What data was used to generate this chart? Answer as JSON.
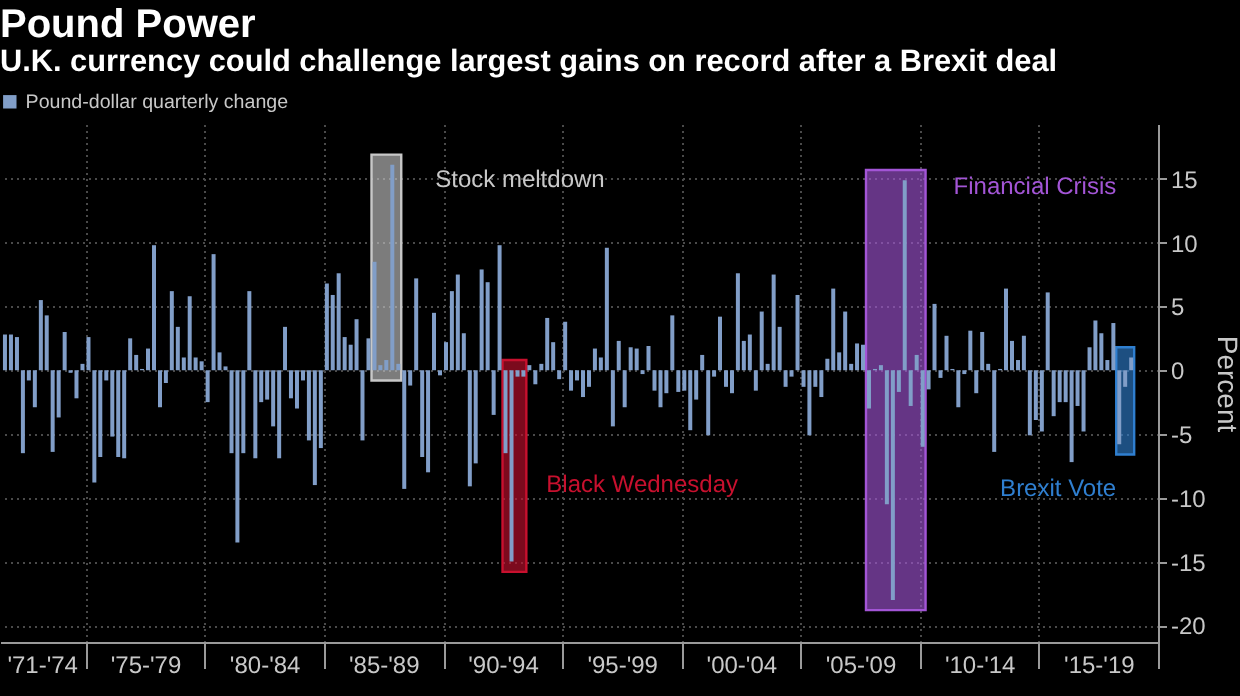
{
  "chart_data": {
    "type": "bar",
    "title": "Pound Power",
    "subtitle": "U.K. currency could challenge largest gains on record after a Brexit deal",
    "ylabel": "Percent",
    "x": [
      "1971-07",
      "1971-10",
      "1972-01",
      "1972-04",
      "1972-07",
      "1972-10",
      "1973-01",
      "1973-04",
      "1973-07",
      "1973-10",
      "1974-01",
      "1974-04",
      "1974-07",
      "1974-10",
      "1975-01",
      "1975-04",
      "1975-07",
      "1975-10",
      "1976-01",
      "1976-04",
      "1976-07",
      "1976-10",
      "1977-01",
      "1977-04",
      "1977-07",
      "1977-10",
      "1978-01",
      "1978-04",
      "1978-07",
      "1978-10",
      "1979-01",
      "1979-04",
      "1979-07",
      "1979-10",
      "1980-01",
      "1980-04",
      "1980-07",
      "1980-10",
      "1981-01",
      "1981-04",
      "1981-07",
      "1981-10",
      "1982-01",
      "1982-04",
      "1982-07",
      "1982-10",
      "1983-01",
      "1983-04",
      "1983-07",
      "1983-10",
      "1984-01",
      "1984-04",
      "1984-07",
      "1984-10",
      "1985-01",
      "1985-04",
      "1985-07",
      "1985-10",
      "1986-01",
      "1986-04",
      "1986-07",
      "1986-10",
      "1987-01",
      "1987-04",
      "1987-07",
      "1987-10",
      "1988-01",
      "1988-04",
      "1988-07",
      "1988-10",
      "1989-01",
      "1989-04",
      "1989-07",
      "1989-10",
      "1990-01",
      "1990-04",
      "1990-07",
      "1990-10",
      "1991-01",
      "1991-04",
      "1991-07",
      "1991-10",
      "1992-01",
      "1992-04",
      "1992-07",
      "1992-10",
      "1993-01",
      "1993-04",
      "1993-07",
      "1993-10",
      "1994-01",
      "1994-04",
      "1994-07",
      "1994-10",
      "1995-01",
      "1995-04",
      "1995-07",
      "1995-10",
      "1996-01",
      "1996-04",
      "1996-07",
      "1996-10",
      "1997-01",
      "1997-04",
      "1997-07",
      "1997-10",
      "1998-01",
      "1998-04",
      "1998-07",
      "1998-10",
      "1999-01",
      "1999-04",
      "1999-07",
      "1999-10",
      "2000-01",
      "2000-04",
      "2000-07",
      "2000-10",
      "2001-01",
      "2001-04",
      "2001-07",
      "2001-10",
      "2002-01",
      "2002-04",
      "2002-07",
      "2002-10",
      "2003-01",
      "2003-04",
      "2003-07",
      "2003-10",
      "2004-01",
      "2004-04",
      "2004-07",
      "2004-10",
      "2005-01",
      "2005-04",
      "2005-07",
      "2005-10",
      "2006-01",
      "2006-04",
      "2006-07",
      "2006-10",
      "2007-01",
      "2007-04",
      "2007-07",
      "2007-10",
      "2008-01",
      "2008-04",
      "2008-07",
      "2008-10",
      "2009-01",
      "2009-04",
      "2009-07",
      "2009-10",
      "2010-01",
      "2010-04",
      "2010-07",
      "2010-10",
      "2011-01",
      "2011-04",
      "2011-07",
      "2011-10",
      "2012-01",
      "2012-04",
      "2012-07",
      "2012-10",
      "2013-01",
      "2013-04",
      "2013-07",
      "2013-10",
      "2014-01",
      "2014-04",
      "2014-07",
      "2014-10",
      "2015-01",
      "2015-04",
      "2015-07",
      "2015-10",
      "2016-01",
      "2016-04",
      "2016-07",
      "2016-10",
      "2017-01",
      "2017-04",
      "2017-07",
      "2017-10",
      "2018-01",
      "2018-04",
      "2018-07",
      "2018-10"
    ],
    "series": [
      {
        "name": "Pound-dollar quarterly change",
        "color": "#819ec8",
        "values": [
          2.8,
          2.8,
          2.6,
          -6.5,
          -0.8,
          -2.9,
          5.5,
          4.3,
          -6.4,
          -3.7,
          3.0,
          -0.2,
          -2.2,
          0.5,
          2.6,
          -8.8,
          -6.8,
          -0.8,
          -5.2,
          -6.8,
          -6.9,
          2.5,
          1.2,
          0.1,
          1.7,
          9.8,
          -2.9,
          -1.0,
          6.2,
          3.4,
          1.0,
          5.8,
          1.0,
          0.7,
          -2.5,
          9.1,
          1.4,
          0.3,
          -6.5,
          -13.5,
          -6.5,
          6.2,
          -6.9,
          -2.5,
          -2.3,
          -4.4,
          -6.9,
          3.4,
          -2.2,
          -3.0,
          -0.8,
          -5.5,
          -9.0,
          -6.1,
          6.8,
          5.9,
          7.6,
          2.6,
          2.0,
          4.0,
          -5.5,
          2.5,
          8.5,
          0.4,
          0.8,
          16.1,
          0.5,
          -9.3,
          -1.2,
          7.2,
          -6.8,
          -8.0,
          4.5,
          -0.4,
          2.2,
          6.2,
          7.5,
          2.9,
          -9.1,
          -7.3,
          7.9,
          6.9,
          -3.5,
          9.8,
          -6.5,
          -15.0,
          -0.5,
          -0.5,
          0.4,
          -1.1,
          0.5,
          4.1,
          2.2,
          -0.7,
          3.8,
          -1.6,
          -0.8,
          -2.1,
          -1.3,
          1.7,
          1.0,
          9.6,
          -4.4,
          2.3,
          -2.9,
          1.8,
          1.7,
          -0.3,
          1.9,
          -1.6,
          -2.9,
          -1.8,
          4.3,
          -1.7,
          -1.6,
          -4.7,
          -2.3,
          1.2,
          -5.1,
          -0.5,
          4.2,
          -1.3,
          -1.8,
          7.6,
          2.3,
          2.8,
          -1.6,
          4.6,
          0.5,
          7.5,
          3.4,
          -1.3,
          -0.5,
          5.9,
          -1.3,
          -5.1,
          -1.3,
          -2.1,
          0.9,
          6.4,
          1.4,
          4.6,
          0.5,
          2.1,
          2.0,
          -3.0,
          0.1,
          0.4,
          -10.5,
          -18.0,
          -1.7,
          14.9,
          -2.8,
          1.2,
          -6.0,
          -1.5,
          5.2,
          -0.6,
          2.7,
          0.1,
          -2.9,
          -0.3,
          3.1,
          -1.8,
          3.0,
          0.5,
          -6.4,
          0.1,
          6.4,
          2.3,
          0.8,
          2.7,
          -5.1,
          -3.9,
          -4.8,
          6.1,
          -3.6,
          -2.5,
          -2.5,
          -7.2,
          -2.8,
          -4.8,
          1.8,
          3.9,
          2.9,
          0.8,
          3.7,
          -5.8,
          -1.3,
          1.0
        ]
      }
    ],
    "xlim": [
      "1971-06",
      "2020-01"
    ],
    "xticks": [
      {
        "value": "1973-03",
        "label": "'71-'74"
      },
      {
        "value": "1975-01",
        "label": null
      },
      {
        "value": "1977-07",
        "label": "'75-'79"
      },
      {
        "value": "1980-01",
        "label": null
      },
      {
        "value": "1982-07",
        "label": "'80-'84"
      },
      {
        "value": "1985-01",
        "label": null
      },
      {
        "value": "1987-07",
        "label": "'85-'89"
      },
      {
        "value": "1990-01",
        "label": null
      },
      {
        "value": "1992-07",
        "label": "'90-'94"
      },
      {
        "value": "1995-01",
        "label": null
      },
      {
        "value": "1997-07",
        "label": "'95-'99"
      },
      {
        "value": "2000-01",
        "label": null
      },
      {
        "value": "2002-07",
        "label": "'00-'04"
      },
      {
        "value": "2005-01",
        "label": null
      },
      {
        "value": "2007-07",
        "label": "'05-'09"
      },
      {
        "value": "2010-01",
        "label": null
      },
      {
        "value": "2012-07",
        "label": "'10-'14"
      },
      {
        "value": "2015-01",
        "label": null
      },
      {
        "value": "2017-07",
        "label": "'15-'19"
      },
      {
        "value": "2020-01",
        "label": null
      }
    ],
    "ylim": [
      -21.3,
      19.3
    ],
    "yticks": [
      -20,
      -15,
      -10,
      -5,
      0,
      5,
      10,
      15
    ],
    "bands": [
      {
        "axis": "x",
        "from": "1987-01",
        "to": "1988-04",
        "label": "Stock meltdown",
        "color": "#c8c8c8"
      },
      {
        "axis": "x",
        "from": "1992-07",
        "to": "1993-07",
        "label": "Black Wednesday",
        "color": "#c8102e"
      },
      {
        "axis": "x",
        "from": "2007-10",
        "to": "2010-04",
        "label": "Financial Crisis",
        "color": "#a355d6"
      },
      {
        "axis": "x",
        "from": "2018-04",
        "to": "2019-01",
        "label": "Brexit Vote",
        "color": "#2f7fd0"
      }
    ],
    "grid": true,
    "legend": "top left"
  }
}
